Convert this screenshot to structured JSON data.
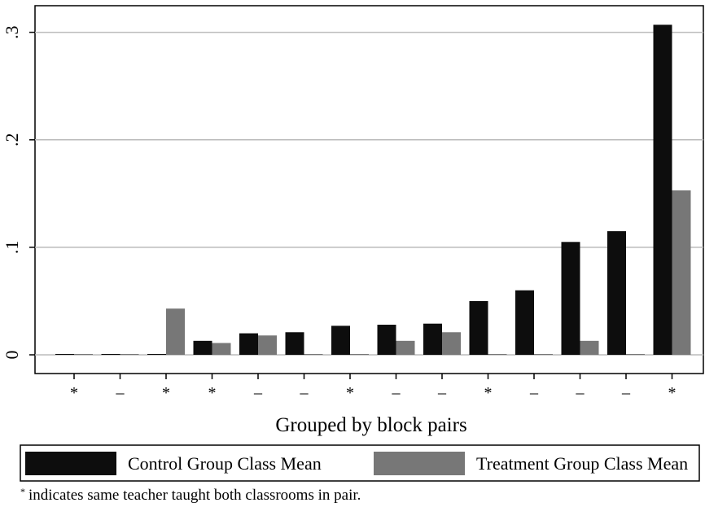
{
  "chart_data": {
    "type": "bar",
    "xlabel": "Grouped by block pairs",
    "ylabel": "",
    "ylim": [
      0,
      0.33
    ],
    "yticks": [
      {
        "value": 0,
        "label": "0"
      },
      {
        "value": 0.1,
        "label": ".1"
      },
      {
        "value": 0.2,
        "label": ".2"
      },
      {
        "value": 0.3,
        "label": ".3"
      }
    ],
    "grid": true,
    "legend_position": "bottom",
    "categories": [
      "*",
      "_",
      "*",
      "*",
      "_",
      "_",
      "*",
      "_",
      "_",
      "*",
      "_",
      "_",
      "_",
      "*"
    ],
    "series": [
      {
        "name": "Control Group Class Mean",
        "color": "#0d0d0d",
        "values": [
          0,
          0,
          0,
          0.013,
          0.02,
          0.021,
          0.027,
          0.028,
          0.029,
          0.05,
          0.06,
          0.105,
          0.115,
          0.307
        ]
      },
      {
        "name": "Treatment Group Class Mean",
        "color": "#777777",
        "values": [
          0,
          0,
          0.043,
          0.011,
          0.018,
          0,
          0,
          0.013,
          0.021,
          0,
          0,
          0.013,
          0,
          0.153
        ]
      }
    ],
    "note": "indicates same teacher taught both classrooms in pair.",
    "note_marker": "*"
  }
}
